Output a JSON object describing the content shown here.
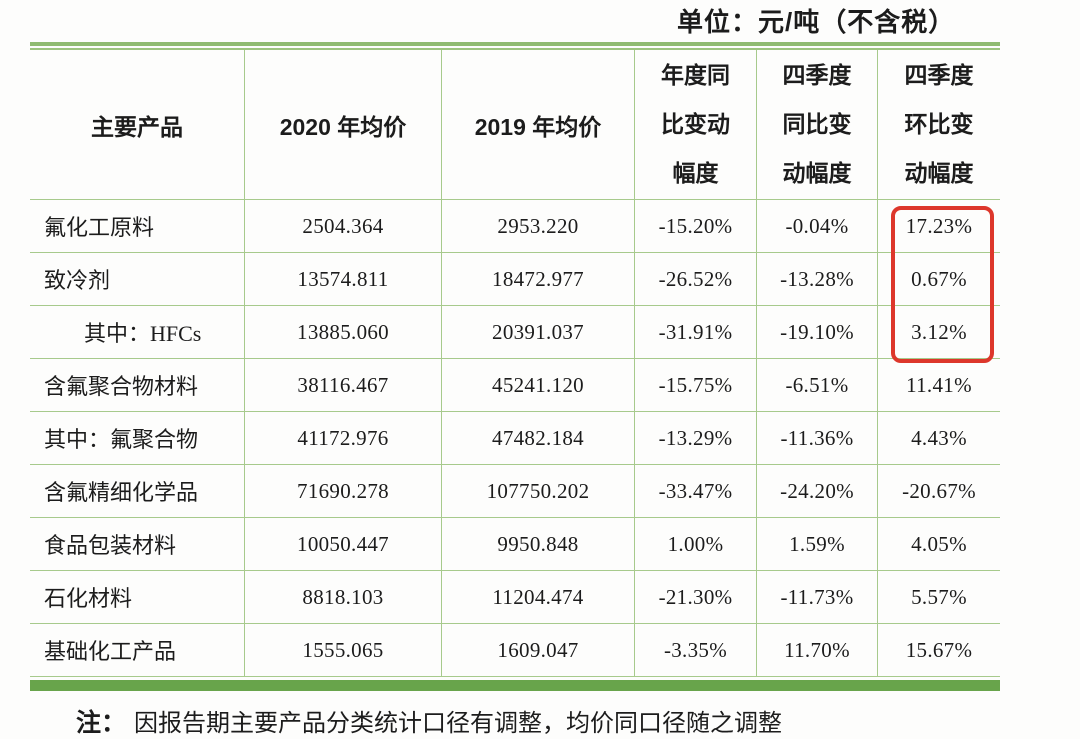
{
  "unit_label": "单位：元/吨（不含税）",
  "table": {
    "columns": [
      "主要产品",
      "2020 年均价",
      "2019 年均价",
      "年度同比变动幅度",
      "四季度同比变动幅度",
      "四季度环比变动幅度"
    ],
    "rows": [
      {
        "product": "氟化工原料",
        "indent": false,
        "price_2020": "2504.364",
        "price_2019": "2953.220",
        "yoy_annual": "-15.20%",
        "q4_yoy": "-0.04%",
        "q4_qoq": "17.23%"
      },
      {
        "product": "致冷剂",
        "indent": false,
        "price_2020": "13574.811",
        "price_2019": "18472.977",
        "yoy_annual": "-26.52%",
        "q4_yoy": "-13.28%",
        "q4_qoq": "0.67%"
      },
      {
        "product": "其中：HFCs",
        "indent": true,
        "price_2020": "13885.060",
        "price_2019": "20391.037",
        "yoy_annual": "-31.91%",
        "q4_yoy": "-19.10%",
        "q4_qoq": "3.12%"
      },
      {
        "product": "含氟聚合物材料",
        "indent": false,
        "price_2020": "38116.467",
        "price_2019": "45241.120",
        "yoy_annual": "-15.75%",
        "q4_yoy": "-6.51%",
        "q4_qoq": "11.41%"
      },
      {
        "product": "其中：氟聚合物",
        "indent": false,
        "price_2020": "41172.976",
        "price_2019": "47482.184",
        "yoy_annual": "-13.29%",
        "q4_yoy": "-11.36%",
        "q4_qoq": "4.43%"
      },
      {
        "product": "含氟精细化学品",
        "indent": false,
        "price_2020": "71690.278",
        "price_2019": "107750.202",
        "yoy_annual": "-33.47%",
        "q4_yoy": "-24.20%",
        "q4_qoq": "-20.67%"
      },
      {
        "product": "食品包装材料",
        "indent": false,
        "price_2020": "10050.447",
        "price_2019": "9950.848",
        "yoy_annual": "1.00%",
        "q4_yoy": "1.59%",
        "q4_qoq": "4.05%"
      },
      {
        "product": "石化材料",
        "indent": false,
        "price_2020": "8818.103",
        "price_2019": "11204.474",
        "yoy_annual": "-21.30%",
        "q4_yoy": "-11.73%",
        "q4_qoq": "5.57%"
      },
      {
        "product": "基础化工产品",
        "indent": false,
        "price_2020": "1555.065",
        "price_2019": "1609.047",
        "yoy_annual": "-3.35%",
        "q4_yoy": "11.70%",
        "q4_qoq": "15.67%"
      }
    ]
  },
  "highlight": {
    "description": "red rounded rectangle around Q4 QoQ values of first three rows",
    "color": "#dd372b",
    "values": [
      "17.23%",
      "0.67%",
      "3.12%"
    ]
  },
  "note": {
    "prefix": "注：",
    "text": "因报告期主要产品分类统计口径有调整，均价同口径随之调整"
  },
  "colors": {
    "border_green": "#a7ca8c",
    "rule_green": "#8fbb71",
    "bottom_bar_green": "#68a44b",
    "highlight_red": "#dd372b",
    "text": "#1c1c1c"
  }
}
